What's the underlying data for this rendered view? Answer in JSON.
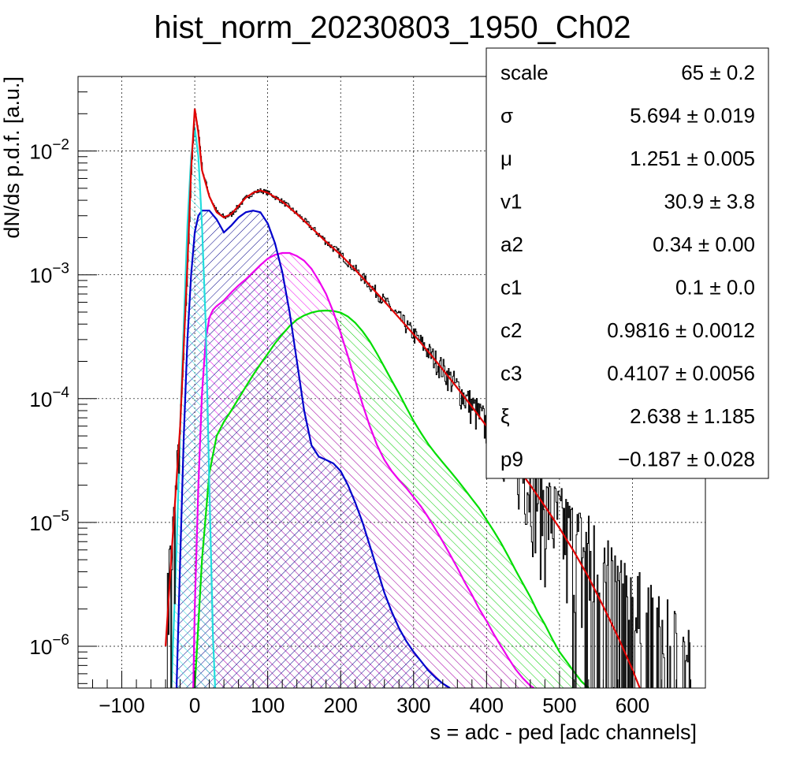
{
  "chart_data": {
    "type": "histogram",
    "title": "hist_norm_20230803_1950_Ch02",
    "xlabel": "s = adc - ped [adc channels]",
    "ylabel": "dN/ds p.d.f. [a.u.]",
    "xlim": [
      -160,
      700
    ],
    "ylim": [
      4.6e-07,
      0.04
    ],
    "y_scale": "log",
    "grid": true,
    "x_ticks": [
      -100,
      0,
      100,
      200,
      300,
      400,
      500,
      600
    ],
    "x_tick_labels": [
      "−100",
      "0",
      "100",
      "200",
      "300",
      "400",
      "500",
      "600"
    ],
    "y_ticks": [
      {
        "value": 1e-06,
        "mantissa": "10",
        "exponent": "−6"
      },
      {
        "value": 1e-05,
        "mantissa": "10",
        "exponent": "−5"
      },
      {
        "value": 0.0001,
        "mantissa": "10",
        "exponent": "−4"
      },
      {
        "value": 0.001,
        "mantissa": "10",
        "exponent": "−3"
      },
      {
        "value": 0.01,
        "mantissa": "10",
        "exponent": "−2"
      }
    ],
    "series": [
      {
        "role": "data histogram",
        "color": "#000000",
        "style": "step",
        "x": [
          -40,
          -30,
          -20,
          -10,
          -5,
          0,
          5,
          10,
          20,
          30,
          40,
          50,
          60,
          70,
          80,
          90,
          100,
          120,
          140,
          160,
          180,
          200,
          220,
          240,
          260,
          280,
          300,
          320,
          340,
          360,
          380,
          400,
          420,
          440,
          460,
          480,
          500,
          520,
          540,
          560,
          580,
          600,
          620,
          640,
          660,
          680
        ],
        "y": [
          1.5e-06,
          8e-06,
          6e-05,
          0.0012,
          0.007,
          0.021,
          0.014,
          0.007,
          0.0043,
          0.0032,
          0.0029,
          0.0031,
          0.0036,
          0.0042,
          0.0046,
          0.0048,
          0.0046,
          0.0039,
          0.0031,
          0.0024,
          0.00185,
          0.00145,
          0.0011,
          0.00082,
          0.00061,
          0.00045,
          0.00033,
          0.00024,
          0.000172,
          0.000122,
          8.6e-05,
          6e-05,
          4.2e-05,
          2.9e-05,
          2e-05,
          1.4e-05,
          1e-05,
          7e-06,
          5e-06,
          3.5e-06,
          2.5e-06,
          1.8e-06,
          1.3e-06,
          1e-06,
          8e-07,
          6e-07
        ]
      },
      {
        "role": "total fit",
        "color": "#e00000",
        "style": "line",
        "x": [
          -40,
          -30,
          -20,
          -10,
          -5,
          0,
          5,
          10,
          20,
          30,
          40,
          50,
          60,
          70,
          80,
          90,
          100,
          120,
          140,
          160,
          180,
          200,
          220,
          240,
          260,
          280,
          300,
          320,
          340,
          360,
          380,
          400,
          420,
          440,
          460,
          480,
          500,
          520,
          540,
          560,
          580,
          600,
          610
        ],
        "y": [
          1e-06,
          8e-06,
          6e-05,
          0.0012,
          0.007,
          0.022,
          0.014,
          0.007,
          0.0043,
          0.0032,
          0.0029,
          0.0031,
          0.0036,
          0.0042,
          0.0046,
          0.0048,
          0.0046,
          0.0039,
          0.0031,
          0.0024,
          0.00185,
          0.00145,
          0.0011,
          0.00082,
          0.00061,
          0.00045,
          0.00033,
          0.00024,
          0.000172,
          0.000122,
          8.6e-05,
          6e-05,
          4.2e-05,
          2.9e-05,
          2e-05,
          1.35e-05,
          9e-06,
          5.8e-06,
          3.6e-06,
          2.1e-06,
          1.2e-06,
          6.5e-07,
          4.6e-07
        ]
      },
      {
        "role": "pedestal component",
        "color": "#22dddd",
        "style": "filled-hatched",
        "x": [
          -32,
          -25,
          -20,
          -15,
          -10,
          -5,
          0,
          5,
          10,
          15,
          20,
          25,
          28
        ],
        "y": [
          4.6e-07,
          6e-06,
          6e-05,
          0.0004,
          0.0025,
          0.009,
          0.0155,
          0.009,
          0.0025,
          0.0004,
          2e-05,
          1.2e-06,
          4.6e-07
        ]
      },
      {
        "role": "1st component",
        "color": "#0000cc",
        "style": "filled-hatched",
        "x": [
          -25,
          -20,
          -15,
          -10,
          -5,
          0,
          5,
          10,
          20,
          30,
          40,
          50,
          60,
          70,
          80,
          90,
          100,
          110,
          120,
          130,
          140,
          150,
          160,
          170,
          180,
          190,
          200,
          210,
          220,
          230,
          240,
          250,
          260,
          270,
          280,
          290,
          300,
          310,
          320,
          330,
          340,
          350
        ],
        "y": [
          4.6e-07,
          5e-06,
          5e-05,
          0.0003,
          0.001,
          0.0022,
          0.003,
          0.0033,
          0.0033,
          0.0028,
          0.0022,
          0.0025,
          0.0029,
          0.0032,
          0.0033,
          0.0032,
          0.0026,
          0.0018,
          0.00105,
          0.0005,
          0.0002,
          8e-05,
          4.2e-05,
          3.4e-05,
          3.2e-05,
          3e-05,
          2.6e-05,
          2e-05,
          1.45e-05,
          1e-05,
          6.5e-06,
          4.2e-06,
          2.7e-06,
          1.9e-06,
          1.4e-06,
          1.1e-06,
          9e-07,
          7.6e-07,
          6.4e-07,
          5.6e-07,
          5e-07,
          4.6e-07
        ]
      },
      {
        "role": "2nd component",
        "color": "#ee00ee",
        "style": "filled-hatched",
        "x": [
          -2,
          0,
          5,
          10,
          15,
          20,
          25,
          30,
          40,
          50,
          60,
          70,
          80,
          90,
          100,
          110,
          120,
          130,
          140,
          150,
          160,
          170,
          180,
          190,
          200,
          210,
          220,
          230,
          240,
          250,
          260,
          270,
          280,
          290,
          300,
          310,
          320,
          330,
          340,
          350,
          360,
          370,
          380,
          390,
          400,
          410,
          420,
          430,
          440,
          450,
          460,
          465
        ],
        "y": [
          4.6e-07,
          2e-06,
          2e-05,
          0.00011,
          0.0003,
          0.00045,
          0.00052,
          0.00056,
          0.00062,
          0.00072,
          0.00082,
          0.00092,
          0.00105,
          0.0012,
          0.00135,
          0.00145,
          0.0015,
          0.0015,
          0.00142,
          0.0013,
          0.00112,
          0.0009,
          0.0007,
          0.0005,
          0.00034,
          0.00022,
          0.00014,
          9e-05,
          6e-05,
          4.2e-05,
          3.2e-05,
          2.6e-05,
          2.2e-05,
          1.9e-05,
          1.6e-05,
          1.35e-05,
          1.1e-05,
          8.8e-06,
          7e-06,
          5.5e-06,
          4.3e-06,
          3.3e-06,
          2.6e-06,
          2e-06,
          1.6e-06,
          1.25e-06,
          1e-06,
          8e-07,
          6.5e-07,
          5.5e-07,
          4.8e-07,
          4.6e-07
        ]
      },
      {
        "role": "3rd component",
        "color": "#00dd00",
        "style": "filled-hatched",
        "x": [
          0,
          10,
          20,
          30,
          40,
          50,
          60,
          70,
          80,
          90,
          100,
          110,
          120,
          130,
          140,
          150,
          160,
          170,
          180,
          190,
          200,
          210,
          220,
          230,
          240,
          250,
          260,
          270,
          280,
          290,
          300,
          310,
          320,
          330,
          340,
          350,
          360,
          370,
          380,
          390,
          400,
          410,
          420,
          430,
          440,
          450,
          460,
          470,
          480,
          490,
          500,
          510,
          520,
          530,
          540
        ],
        "y": [
          4.6e-07,
          5e-06,
          2.5e-05,
          5e-05,
          6.5e-05,
          8e-05,
          0.0001,
          0.000125,
          0.000155,
          0.00019,
          0.00023,
          0.00028,
          0.00033,
          0.000385,
          0.000435,
          0.00047,
          0.000495,
          0.00051,
          0.000515,
          0.00051,
          0.000495,
          0.00046,
          0.00041,
          0.00035,
          0.00029,
          0.00023,
          0.00018,
          0.00014,
          0.00011,
          8.5e-05,
          6.6e-05,
          5.3e-05,
          4.3e-05,
          3.6e-05,
          3.05e-05,
          2.6e-05,
          2.2e-05,
          1.85e-05,
          1.55e-05,
          1.3e-05,
          1.05e-05,
          8.5e-06,
          6.8e-06,
          5.3e-06,
          4.1e-06,
          3.2e-06,
          2.5e-06,
          1.9e-06,
          1.5e-06,
          1.15e-06,
          9e-07,
          7.5e-07,
          6.2e-07,
          5.2e-07,
          4.6e-07
        ]
      }
    ],
    "stats_box": [
      {
        "name": "scale",
        "value": "65",
        "error": "0.2"
      },
      {
        "name": "σ",
        "value": "5.694",
        "error": "0.019"
      },
      {
        "name": "μ",
        "value": "1.251",
        "error": "0.005"
      },
      {
        "name": "v1",
        "value": "30.9",
        "error": "3.8"
      },
      {
        "name": "a2",
        "value": "0.34",
        "error": "0.00"
      },
      {
        "name": "c1",
        "value": "0.1",
        "error": "0.0"
      },
      {
        "name": "c2",
        "value": "0.9816",
        "error": "0.0012"
      },
      {
        "name": "c3",
        "value": "0.4107",
        "error": "0.0056"
      },
      {
        "name": "ξ",
        "value": "2.638",
        "error": "1.185"
      },
      {
        "name": "p9",
        "value": "−0.187",
        "error": "0.028"
      }
    ],
    "stats_separator": "±",
    "legend_placement": "top-right"
  }
}
